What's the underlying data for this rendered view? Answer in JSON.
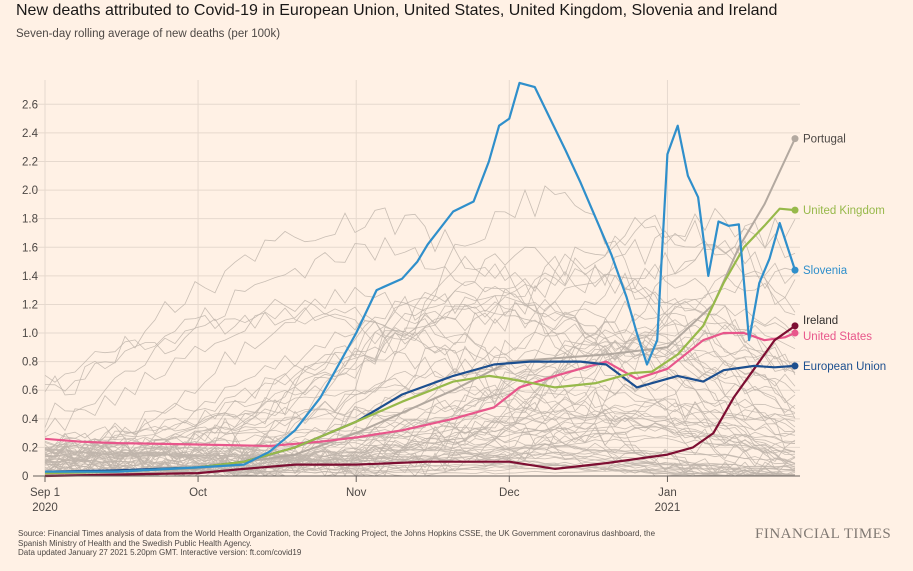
{
  "header": {
    "title": "New deaths attributed to Covid-19 in European Union, United States, United Kingdom, Slovenia and Ireland",
    "subtitle": "Seven-day rolling average of new deaths (per 100k)"
  },
  "footer": {
    "source_line_1": "Source: Financial Times analysis of data from the World Health Organization, the Covid Tracking Project, the Johns Hopkins CSSE, the UK Government coronavirus dashboard, the",
    "source_line_2": "Spanish Ministry of Health and the Swedish Public Health Agency.",
    "source_line_3": "Data updated January 27 2021 5.20pm GMT. Interactive version: ft.com/covid19",
    "brand": "FINANCIAL TIMES"
  },
  "colors": {
    "background": "#fff1e5",
    "gridline": "#e6d9ce",
    "background_countries": "#c0b5ac",
    "european_union": "#1c4f8f",
    "united_states": "#e8568b",
    "united_kingdom": "#97b94a",
    "slovenia": "#2f8fcb",
    "ireland": "#7d0e32",
    "portugal": "#b3a9a0"
  },
  "chart_data": {
    "type": "line",
    "title": "New deaths attributed to Covid-19 in European Union, United States, United Kingdom, Slovenia and Ireland",
    "subtitle": "Seven-day rolling average of new deaths (per 100k)",
    "x_axis": {
      "start": "2020-09-01",
      "end": "2021-01-26",
      "ticks": [
        {
          "date": "2020-09-01",
          "label": "Sep 1",
          "sublabel": "2020"
        },
        {
          "date": "2020-10-01",
          "label": "Oct",
          "sublabel": ""
        },
        {
          "date": "2020-11-01",
          "label": "Nov",
          "sublabel": ""
        },
        {
          "date": "2020-12-01",
          "label": "Dec",
          "sublabel": ""
        },
        {
          "date": "2021-01-01",
          "label": "Jan",
          "sublabel": "2021"
        }
      ]
    },
    "y_axis": {
      "min": 0,
      "max": 2.7,
      "ticks": [
        0,
        0.2,
        0.4,
        0.6,
        0.8,
        1.0,
        1.2,
        1.4,
        1.6,
        1.8,
        2.0,
        2.2,
        2.4,
        2.6
      ],
      "tick_labels": [
        "0",
        "0.2",
        "0.4",
        "0.6",
        "0.8",
        "1.0",
        "1.2",
        "1.4",
        "1.6",
        "1.8",
        "2.0",
        "2.2",
        "2.4",
        "2.6"
      ]
    },
    "grid": true,
    "background_series_note": "Many other countries drawn as thin grey lines, unlabelled",
    "series": [
      {
        "name": "Slovenia",
        "label": "Slovenia",
        "color_key": "slovenia",
        "points": [
          [
            "2020-09-01",
            0.03
          ],
          [
            "2020-09-15",
            0.03
          ],
          [
            "2020-10-01",
            0.06
          ],
          [
            "2020-10-10",
            0.08
          ],
          [
            "2020-10-15",
            0.17
          ],
          [
            "2020-10-20",
            0.32
          ],
          [
            "2020-10-25",
            0.55
          ],
          [
            "2020-11-01",
            1.0
          ],
          [
            "2020-11-05",
            1.3
          ],
          [
            "2020-11-10",
            1.38
          ],
          [
            "2020-11-13",
            1.5
          ],
          [
            "2020-11-15",
            1.62
          ],
          [
            "2020-11-20",
            1.85
          ],
          [
            "2020-11-24",
            1.92
          ],
          [
            "2020-11-27",
            2.2
          ],
          [
            "2020-11-29",
            2.45
          ],
          [
            "2020-12-01",
            2.5
          ],
          [
            "2020-12-03",
            2.75
          ],
          [
            "2020-12-06",
            2.72
          ],
          [
            "2020-12-09",
            2.5
          ],
          [
            "2020-12-12",
            2.28
          ],
          [
            "2020-12-15",
            2.05
          ],
          [
            "2020-12-18",
            1.8
          ],
          [
            "2020-12-21",
            1.55
          ],
          [
            "2020-12-24",
            1.25
          ],
          [
            "2020-12-26",
            1.0
          ],
          [
            "2020-12-28",
            0.78
          ],
          [
            "2020-12-30",
            0.95
          ],
          [
            "2021-01-01",
            2.25
          ],
          [
            "2021-01-03",
            2.45
          ],
          [
            "2021-01-05",
            2.1
          ],
          [
            "2021-01-07",
            1.95
          ],
          [
            "2021-01-09",
            1.4
          ],
          [
            "2021-01-11",
            1.78
          ],
          [
            "2021-01-13",
            1.75
          ],
          [
            "2021-01-15",
            1.76
          ],
          [
            "2021-01-17",
            0.95
          ],
          [
            "2021-01-19",
            1.35
          ],
          [
            "2021-01-21",
            1.52
          ],
          [
            "2021-01-23",
            1.77
          ],
          [
            "2021-01-26",
            1.44
          ]
        ]
      },
      {
        "name": "United Kingdom",
        "label": "United Kingdom",
        "color_key": "united_kingdom",
        "points": [
          [
            "2020-09-01",
            0.02
          ],
          [
            "2020-09-15",
            0.03
          ],
          [
            "2020-10-01",
            0.06
          ],
          [
            "2020-10-10",
            0.1
          ],
          [
            "2020-10-20",
            0.2
          ],
          [
            "2020-11-01",
            0.38
          ],
          [
            "2020-11-10",
            0.52
          ],
          [
            "2020-11-20",
            0.66
          ],
          [
            "2020-11-27",
            0.7
          ],
          [
            "2020-12-01",
            0.68
          ],
          [
            "2020-12-10",
            0.62
          ],
          [
            "2020-12-18",
            0.65
          ],
          [
            "2020-12-25",
            0.72
          ],
          [
            "2020-12-29",
            0.73
          ],
          [
            "2021-01-03",
            0.85
          ],
          [
            "2021-01-08",
            1.05
          ],
          [
            "2021-01-12",
            1.35
          ],
          [
            "2021-01-16",
            1.6
          ],
          [
            "2021-01-20",
            1.75
          ],
          [
            "2021-01-23",
            1.87
          ],
          [
            "2021-01-26",
            1.86
          ]
        ]
      },
      {
        "name": "European Union",
        "label": "European Union",
        "color_key": "european_union",
        "points": [
          [
            "2020-09-01",
            0.03
          ],
          [
            "2020-09-15",
            0.04
          ],
          [
            "2020-10-01",
            0.06
          ],
          [
            "2020-10-10",
            0.1
          ],
          [
            "2020-10-20",
            0.2
          ],
          [
            "2020-11-01",
            0.38
          ],
          [
            "2020-11-10",
            0.57
          ],
          [
            "2020-11-20",
            0.7
          ],
          [
            "2020-11-28",
            0.78
          ],
          [
            "2020-12-05",
            0.8
          ],
          [
            "2020-12-15",
            0.8
          ],
          [
            "2020-12-20",
            0.78
          ],
          [
            "2020-12-26",
            0.62
          ],
          [
            "2021-01-03",
            0.7
          ],
          [
            "2021-01-08",
            0.66
          ],
          [
            "2021-01-12",
            0.74
          ],
          [
            "2021-01-18",
            0.77
          ],
          [
            "2021-01-22",
            0.76
          ],
          [
            "2021-01-26",
            0.77
          ]
        ]
      },
      {
        "name": "United States",
        "label": "United States",
        "color_key": "united_states",
        "points": [
          [
            "2020-09-01",
            0.26
          ],
          [
            "2020-09-08",
            0.24
          ],
          [
            "2020-09-15",
            0.23
          ],
          [
            "2020-10-01",
            0.22
          ],
          [
            "2020-10-15",
            0.21
          ],
          [
            "2020-10-25",
            0.24
          ],
          [
            "2020-11-01",
            0.27
          ],
          [
            "2020-11-10",
            0.32
          ],
          [
            "2020-11-20",
            0.4
          ],
          [
            "2020-11-24",
            0.44
          ],
          [
            "2020-11-28",
            0.48
          ],
          [
            "2020-12-03",
            0.62
          ],
          [
            "2020-12-10",
            0.7
          ],
          [
            "2020-12-20",
            0.8
          ],
          [
            "2020-12-26",
            0.68
          ],
          [
            "2021-01-01",
            0.75
          ],
          [
            "2021-01-08",
            0.95
          ],
          [
            "2021-01-12",
            1.0
          ],
          [
            "2021-01-16",
            1.0
          ],
          [
            "2021-01-20",
            0.95
          ],
          [
            "2021-01-24",
            0.97
          ],
          [
            "2021-01-26",
            1.0
          ]
        ]
      },
      {
        "name": "Ireland",
        "label": "Ireland",
        "color_key": "ireland",
        "points": [
          [
            "2020-09-01",
            0.0
          ],
          [
            "2020-09-15",
            0.01
          ],
          [
            "2020-10-01",
            0.02
          ],
          [
            "2020-10-10",
            0.05
          ],
          [
            "2020-10-20",
            0.08
          ],
          [
            "2020-11-01",
            0.08
          ],
          [
            "2020-11-15",
            0.1
          ],
          [
            "2020-12-01",
            0.1
          ],
          [
            "2020-12-10",
            0.05
          ],
          [
            "2020-12-20",
            0.09
          ],
          [
            "2021-01-01",
            0.15
          ],
          [
            "2021-01-06",
            0.2
          ],
          [
            "2021-01-10",
            0.3
          ],
          [
            "2021-01-14",
            0.55
          ],
          [
            "2021-01-18",
            0.75
          ],
          [
            "2021-01-22",
            0.95
          ],
          [
            "2021-01-26",
            1.05
          ]
        ]
      },
      {
        "name": "Portugal",
        "label": "Portugal",
        "color_key": "portugal",
        "points": [
          [
            "2020-09-01",
            0.02
          ],
          [
            "2020-10-01",
            0.05
          ],
          [
            "2020-10-20",
            0.15
          ],
          [
            "2020-11-01",
            0.3
          ],
          [
            "2020-11-20",
            0.6
          ],
          [
            "2020-12-01",
            0.8
          ],
          [
            "2020-12-20",
            0.85
          ],
          [
            "2021-01-01",
            0.9
          ],
          [
            "2021-01-10",
            1.2
          ],
          [
            "2021-01-15",
            1.6
          ],
          [
            "2021-01-20",
            1.9
          ],
          [
            "2021-01-26",
            2.36
          ]
        ]
      }
    ]
  }
}
